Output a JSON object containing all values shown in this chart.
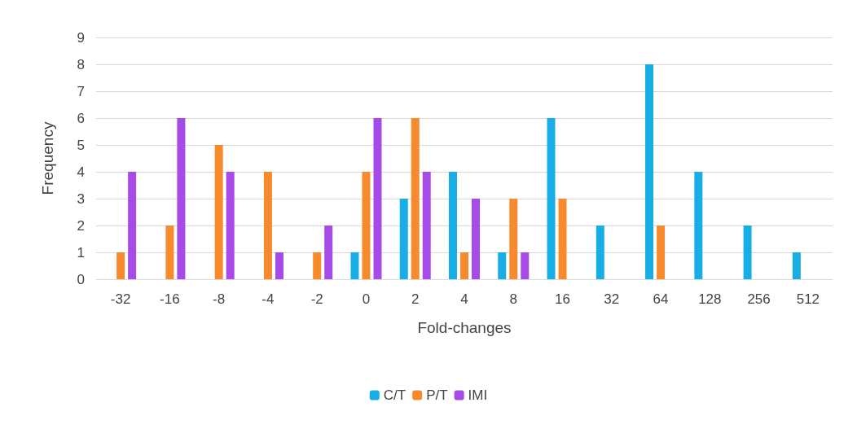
{
  "chart_data": {
    "type": "bar",
    "xlabel": "Fold-changes",
    "ylabel": "Frequency",
    "categories": [
      "-32",
      "-16",
      "-8",
      "-4",
      "-2",
      "0",
      "2",
      "4",
      "8",
      "16",
      "32",
      "64",
      "128",
      "256",
      "512"
    ],
    "series": [
      {
        "name": "C/T",
        "color": "#17aee6",
        "values": [
          0,
          0,
          0,
          0,
          0,
          1,
          3,
          4,
          1,
          6,
          2,
          8,
          4,
          2,
          1
        ]
      },
      {
        "name": "P/T",
        "color": "#f78a2c",
        "values": [
          1,
          2,
          5,
          4,
          1,
          4,
          6,
          1,
          3,
          3,
          0,
          2,
          0,
          0,
          0
        ]
      },
      {
        "name": "IMI",
        "color": "#a64ae8",
        "values": [
          4,
          6,
          4,
          1,
          2,
          6,
          4,
          3,
          1,
          0,
          0,
          0,
          0,
          0,
          0
        ]
      }
    ],
    "ylim": [
      0,
      9
    ],
    "yticks": [
      0,
      1,
      2,
      3,
      4,
      5,
      6,
      7,
      8,
      9
    ],
    "grid": "y",
    "legend": "bottom"
  }
}
